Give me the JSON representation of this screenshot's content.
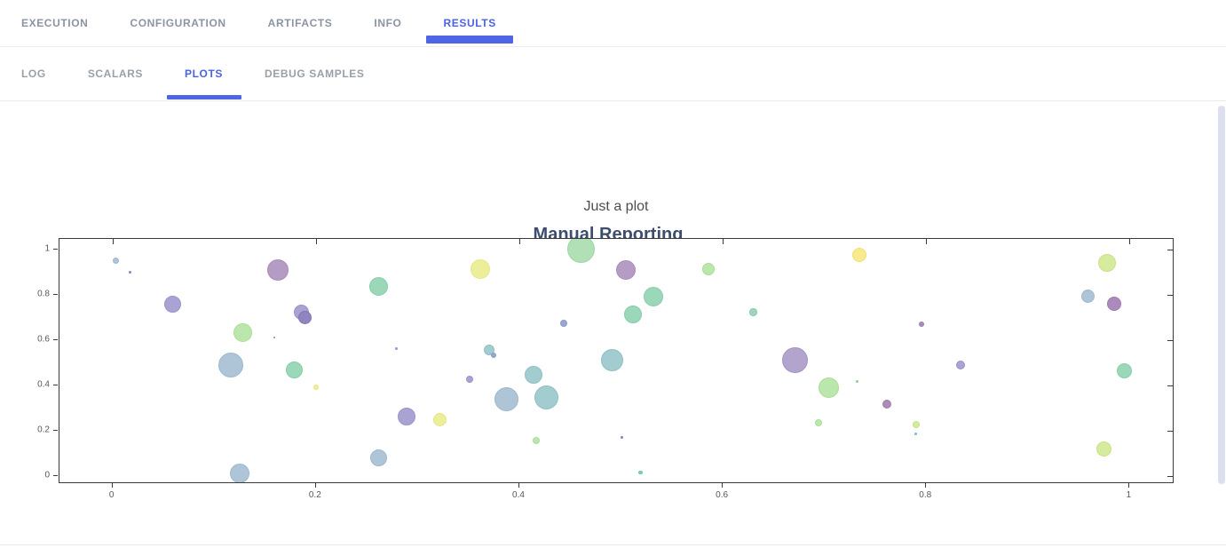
{
  "tabs_primary": {
    "items": [
      {
        "label": "EXECUTION",
        "active": false
      },
      {
        "label": "CONFIGURATION",
        "active": false
      },
      {
        "label": "ARTIFACTS",
        "active": false
      },
      {
        "label": "INFO",
        "active": false
      },
      {
        "label": "RESULTS",
        "active": true
      }
    ]
  },
  "tabs_secondary": {
    "items": [
      {
        "label": "LOG",
        "active": false
      },
      {
        "label": "SCALARS",
        "active": false
      },
      {
        "label": "PLOTS",
        "active": true
      },
      {
        "label": "DEBUG SAMPLES",
        "active": false
      }
    ]
  },
  "page": {
    "title": "Manual Reporting"
  },
  "accent_color": "#4a63e4",
  "chart_data": {
    "type": "scatter",
    "title": "Just a plot",
    "xlabel": "",
    "ylabel": "",
    "xlim": [
      -0.052,
      1.044
    ],
    "ylim": [
      -0.035,
      1.047
    ],
    "x_ticks": [
      0,
      0.2,
      0.4,
      0.6,
      0.8,
      1
    ],
    "y_ticks": [
      0,
      0.2,
      0.4,
      0.6,
      0.8,
      1
    ],
    "x_tick_labels": [
      "0",
      "0.2",
      "0.4",
      "0.6",
      "0.8",
      "1"
    ],
    "y_tick_labels": [
      "0",
      "0.2",
      "0.4",
      "0.6",
      "0.8",
      "1"
    ],
    "grid": false,
    "legend": false,
    "palette": {
      "steel": {
        "fill": "#aec5d7",
        "stroke": "#9cb8ce"
      },
      "slate": {
        "fill": "#98a7d0",
        "stroke": "#8a9ac8"
      },
      "violet": {
        "fill": "#a8a3d2",
        "stroke": "#9a94c9"
      },
      "purple": {
        "fill": "#9184c0",
        "stroke": "#8375b5"
      },
      "lavender": {
        "fill": "#b3a4cd",
        "stroke": "#a593c2"
      },
      "mauve": {
        "fill": "#b59cc5",
        "stroke": "#a88dba"
      },
      "plum": {
        "fill": "#ab8abc",
        "stroke": "#9d7aaf"
      },
      "lightgreen": {
        "fill": "#bce7ac",
        "stroke": "#abdd97"
      },
      "greendot": {
        "fill": "#9ed89e",
        "stroke": "#8ecf8e"
      },
      "mint": {
        "fill": "#b1dfb6",
        "stroke": "#a0d5a7"
      },
      "tealgreen": {
        "fill": "#9bd7b9",
        "stroke": "#89cca9"
      },
      "teal": {
        "fill": "#a2cccf",
        "stroke": "#90bfc4"
      },
      "tealdot": {
        "fill": "#85cfc2",
        "stroke": "#74c4b6"
      },
      "yellow": {
        "fill": "#edee9a",
        "stroke": "#e3e683"
      },
      "brightyellow": {
        "fill": "#f8eb8e",
        "stroke": "#f0df74"
      },
      "yellowgreen": {
        "fill": "#d6eb9d",
        "stroke": "#c8e288"
      }
    },
    "points": [
      {
        "x": 0.003,
        "y": 0.95,
        "r": 3.5,
        "c": "steel"
      },
      {
        "x": 0.017,
        "y": 0.899,
        "r": 1.5,
        "c": "plum"
      },
      {
        "x": 0.059,
        "y": 0.757,
        "r": 9.5,
        "c": "violet"
      },
      {
        "x": 0.163,
        "y": 0.907,
        "r": 12,
        "c": "mauve"
      },
      {
        "x": 0.186,
        "y": 0.723,
        "r": 8.5,
        "c": "violet"
      },
      {
        "x": 0.189,
        "y": 0.7,
        "r": 7.5,
        "c": "purple"
      },
      {
        "x": 0.128,
        "y": 0.631,
        "r": 10.5,
        "c": "lightgreen"
      },
      {
        "x": 0.159,
        "y": 0.612,
        "r": 1.2,
        "c": "plum"
      },
      {
        "x": 0.116,
        "y": 0.49,
        "r": 14,
        "c": "steel"
      },
      {
        "x": 0.179,
        "y": 0.468,
        "r": 9.5,
        "c": "tealgreen"
      },
      {
        "x": 0.2,
        "y": 0.392,
        "r": 3,
        "c": "yellow"
      },
      {
        "x": 0.125,
        "y": 0.01,
        "r": 11,
        "c": "steel"
      },
      {
        "x": 0.262,
        "y": 0.837,
        "r": 10.5,
        "c": "tealgreen"
      },
      {
        "x": 0.262,
        "y": 0.082,
        "r": 9.5,
        "c": "steel"
      },
      {
        "x": 0.279,
        "y": 0.562,
        "r": 1.5,
        "c": "slate"
      },
      {
        "x": 0.289,
        "y": 0.262,
        "r": 10,
        "c": "violet"
      },
      {
        "x": 0.322,
        "y": 0.247,
        "r": 7.5,
        "c": "yellow"
      },
      {
        "x": 0.362,
        "y": 0.911,
        "r": 11,
        "c": "yellow"
      },
      {
        "x": 0.37,
        "y": 0.558,
        "r": 6,
        "c": "teal"
      },
      {
        "x": 0.375,
        "y": 0.531,
        "r": 3,
        "c": "slate"
      },
      {
        "x": 0.351,
        "y": 0.425,
        "r": 4,
        "c": "violet"
      },
      {
        "x": 0.387,
        "y": 0.338,
        "r": 13.5,
        "c": "steel"
      },
      {
        "x": 0.414,
        "y": 0.446,
        "r": 10,
        "c": "teal"
      },
      {
        "x": 0.427,
        "y": 0.345,
        "r": 13.5,
        "c": "teal"
      },
      {
        "x": 0.417,
        "y": 0.157,
        "r": 4,
        "c": "lightgreen"
      },
      {
        "x": 0.461,
        "y": 1.0,
        "r": 15.5,
        "c": "mint"
      },
      {
        "x": 0.444,
        "y": 0.673,
        "r": 4,
        "c": "slate"
      },
      {
        "x": 0.505,
        "y": 0.91,
        "r": 11,
        "c": "mauve"
      },
      {
        "x": 0.512,
        "y": 0.714,
        "r": 10,
        "c": "tealgreen"
      },
      {
        "x": 0.491,
        "y": 0.51,
        "r": 12.5,
        "c": "teal"
      },
      {
        "x": 0.501,
        "y": 0.17,
        "r": 1.2,
        "c": "plum"
      },
      {
        "x": 0.519,
        "y": 0.015,
        "r": 2.2,
        "c": "tealdot"
      },
      {
        "x": 0.532,
        "y": 0.793,
        "r": 11,
        "c": "tealgreen"
      },
      {
        "x": 0.586,
        "y": 0.911,
        "r": 7,
        "c": "lightgreen"
      },
      {
        "x": 0.63,
        "y": 0.723,
        "r": 4.2,
        "c": "tealgreen"
      },
      {
        "x": 0.671,
        "y": 0.51,
        "r": 14.5,
        "c": "lavender"
      },
      {
        "x": 0.704,
        "y": 0.391,
        "r": 11.5,
        "c": "lightgreen"
      },
      {
        "x": 0.732,
        "y": 0.417,
        "r": 1.2,
        "c": "greendot"
      },
      {
        "x": 0.734,
        "y": 0.977,
        "r": 8,
        "c": "brightyellow"
      },
      {
        "x": 0.761,
        "y": 0.319,
        "r": 5,
        "c": "plum"
      },
      {
        "x": 0.694,
        "y": 0.235,
        "r": 4,
        "c": "lightgreen"
      },
      {
        "x": 0.79,
        "y": 0.229,
        "r": 4,
        "c": "yellowgreen"
      },
      {
        "x": 0.79,
        "y": 0.187,
        "r": 1.4,
        "c": "tealdot"
      },
      {
        "x": 0.795,
        "y": 0.668,
        "r": 3,
        "c": "plum"
      },
      {
        "x": 0.834,
        "y": 0.491,
        "r": 5,
        "c": "violet"
      },
      {
        "x": 0.959,
        "y": 0.795,
        "r": 7.5,
        "c": "steel"
      },
      {
        "x": 0.978,
        "y": 0.94,
        "r": 10,
        "c": "yellowgreen"
      },
      {
        "x": 0.985,
        "y": 0.76,
        "r": 8,
        "c": "plum"
      },
      {
        "x": 0.995,
        "y": 0.463,
        "r": 8.5,
        "c": "tealgreen"
      },
      {
        "x": 0.975,
        "y": 0.12,
        "r": 8.5,
        "c": "yellowgreen"
      }
    ]
  }
}
